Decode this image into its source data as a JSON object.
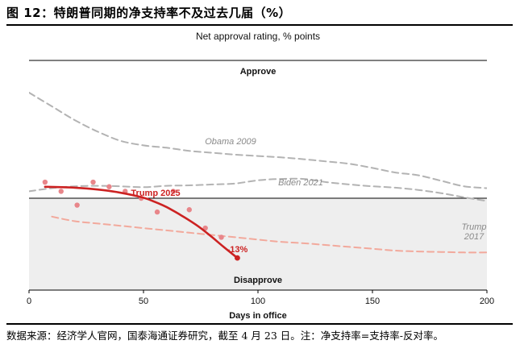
{
  "figure": {
    "title": "图 12：特朗普同期的净支持率不及过去几届（%）",
    "source": "数据来源：经济学人官网，国泰海通证券研究，截至 4 月 23 日。注：净支持率=支持率-反对率。"
  },
  "chart_data": {
    "type": "line",
    "title": "Net approval rating, % points",
    "xlabel": "Days in office",
    "ylabel": "",
    "xlim": [
      0,
      200
    ],
    "ylim": [
      -20,
      30
    ],
    "x_ticks": [
      "0",
      "50",
      "100",
      "150",
      "200"
    ],
    "zones": {
      "upper": "Approve",
      "lower": "Disapprove"
    },
    "grid": false,
    "series": [
      {
        "name": "Obama 2009",
        "style": "dashed",
        "color": "#b3b3b3",
        "x": [
          0,
          10,
          20,
          30,
          40,
          50,
          60,
          70,
          80,
          90,
          100,
          110,
          120,
          130,
          140,
          150,
          160,
          170,
          180,
          190,
          200
        ],
        "y": [
          23,
          20,
          17,
          14.5,
          12.5,
          11.5,
          11,
          10.3,
          9.9,
          9.5,
          9.2,
          8.9,
          8.5,
          8,
          7.5,
          6.6,
          5.6,
          5,
          3.8,
          2.6,
          2.2
        ]
      },
      {
        "name": "Biden 2021",
        "style": "dashed",
        "color": "#b3b3b3",
        "x": [
          0,
          10,
          20,
          30,
          40,
          50,
          60,
          70,
          80,
          90,
          100,
          110,
          120,
          130,
          140,
          150,
          160,
          170,
          180,
          190,
          200
        ],
        "y": [
          1.5,
          2.2,
          2.6,
          2.7,
          2.6,
          2.4,
          2.7,
          2.8,
          3,
          3.2,
          3.9,
          4.2,
          4.2,
          3.5,
          3,
          2.6,
          2.3,
          1.8,
          1.1,
          0.2,
          -0.6
        ]
      },
      {
        "name": "Trump 2017",
        "style": "dashed",
        "color": "#f2a99c",
        "x": [
          10,
          20,
          30,
          40,
          50,
          60,
          70,
          80,
          90,
          100,
          110,
          120,
          130,
          140,
          150,
          160,
          170,
          180,
          190,
          200
        ],
        "y": [
          -4,
          -5,
          -5.5,
          -6,
          -6.5,
          -7,
          -7.5,
          -8,
          -8.5,
          -9,
          -9.5,
          -9.8,
          -10.2,
          -10.6,
          -11,
          -11.4,
          -11.6,
          -11.7,
          -11.8,
          -11.8
        ]
      },
      {
        "name": "Trump 2025",
        "style": "solid",
        "color": "#cc2222",
        "x": [
          7,
          20,
          30,
          40,
          50,
          55,
          60,
          65,
          70,
          75,
          80,
          85,
          91
        ],
        "y": [
          2.5,
          2.3,
          1.9,
          1.2,
          0.1,
          -0.8,
          -1.9,
          -3.3,
          -4.8,
          -6.5,
          -8.5,
          -10.6,
          -13
        ]
      },
      {
        "name": "Trump 2025 polls",
        "style": "points",
        "color": "#e8868a",
        "x": [
          7,
          14,
          21,
          28,
          35,
          42,
          49,
          56,
          63,
          70,
          77,
          84
        ],
        "y": [
          3.5,
          1.5,
          -1.5,
          3.5,
          2.5,
          1.5,
          0,
          -3,
          1.5,
          -2.5,
          -6.5,
          -8.5
        ]
      }
    ],
    "annotations": [
      {
        "text": "-13%",
        "x": 91,
        "y": -13,
        "series": "Trump 2025"
      }
    ]
  }
}
